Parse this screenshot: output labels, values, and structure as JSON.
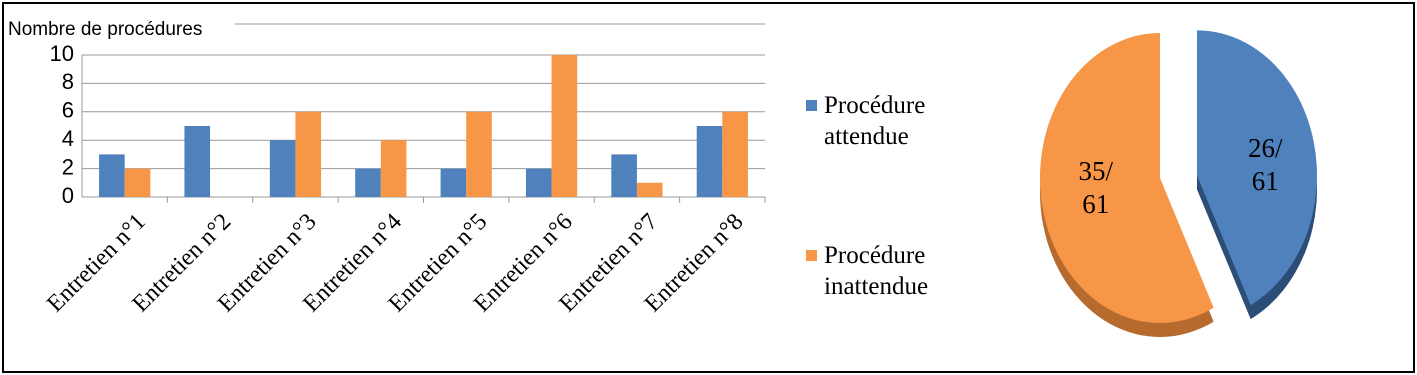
{
  "chart_data": [
    {
      "type": "bar",
      "y_label": "Nombre de procédures",
      "categories": [
        "Entretien n°1",
        "Entretien n°2",
        "Entretien n°3",
        "Entretien n°4",
        "Entretien n°5",
        "Entretien n°6",
        "Entretien n°7",
        "Entretien n°8"
      ],
      "series": [
        {
          "name": "Procédure attendue",
          "color": "#4f81bd",
          "values": [
            3,
            5,
            4,
            2,
            2,
            2,
            3,
            5
          ]
        },
        {
          "name": "Procédure inattendue",
          "color": "#f79646",
          "values": [
            2,
            0,
            6,
            4,
            6,
            10,
            1,
            6
          ]
        }
      ],
      "ylim": [
        0,
        10
      ],
      "yticks": [
        0,
        2,
        4,
        6,
        8,
        10
      ],
      "grid": true
    },
    {
      "type": "pie",
      "values": [
        26,
        35
      ],
      "value_labels": [
        "26/61",
        "35/61"
      ],
      "colors": [
        "#4f81bd",
        "#f79646"
      ],
      "side_colors": [
        "#2c4d75",
        "#b66a2e"
      ]
    }
  ]
}
